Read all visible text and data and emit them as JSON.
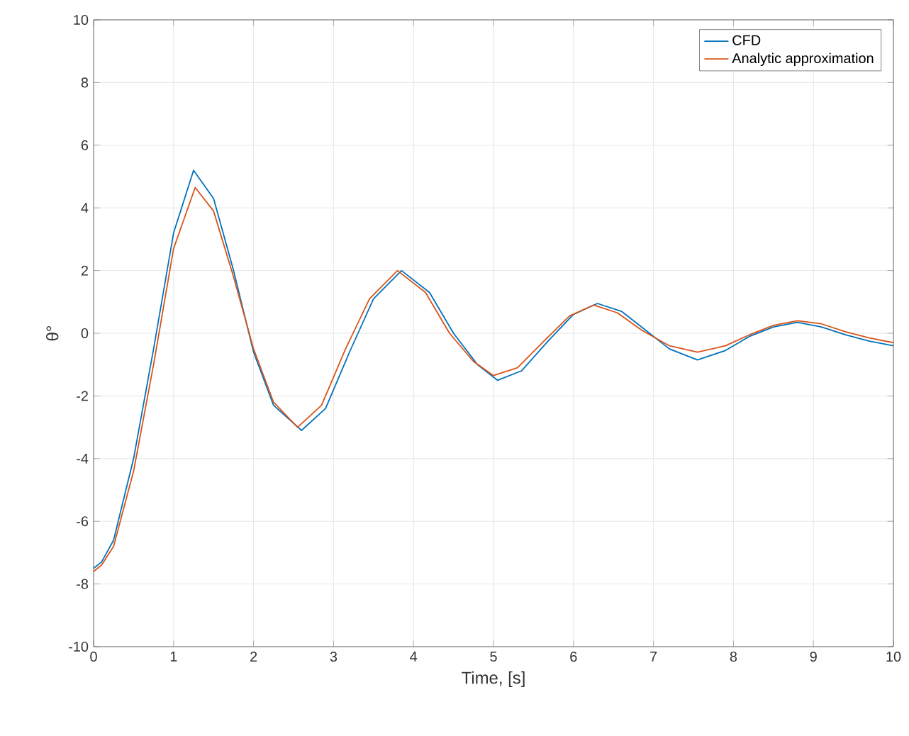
{
  "chart_data": {
    "type": "line",
    "xlabel": "Time, [s]",
    "ylabel": "θ°",
    "xlim": [
      0,
      10
    ],
    "ylim": [
      -10,
      10
    ],
    "xticks": [
      0,
      1,
      2,
      3,
      4,
      5,
      6,
      7,
      8,
      9,
      10
    ],
    "yticks": [
      -10,
      -8,
      -6,
      -4,
      -2,
      0,
      2,
      4,
      6,
      8,
      10
    ],
    "grid": true,
    "legend": "top right",
    "series": [
      {
        "name": "CFD",
        "color": "#0072bd",
        "x": [
          0,
          0.1,
          0.25,
          0.5,
          0.75,
          1.0,
          1.25,
          1.5,
          1.75,
          2.0,
          2.25,
          2.6,
          2.9,
          3.2,
          3.5,
          3.85,
          4.2,
          4.5,
          4.8,
          5.05,
          5.35,
          5.7,
          6.0,
          6.3,
          6.6,
          6.9,
          7.2,
          7.55,
          7.9,
          8.2,
          8.5,
          8.8,
          9.1,
          9.4,
          9.7,
          10
        ],
        "values": [
          -7.5,
          -7.3,
          -6.6,
          -4.0,
          -0.5,
          3.2,
          5.2,
          4.3,
          2.0,
          -0.6,
          -2.3,
          -3.1,
          -2.4,
          -0.6,
          1.1,
          2.0,
          1.3,
          0.0,
          -1.0,
          -1.5,
          -1.2,
          -0.2,
          0.6,
          0.95,
          0.7,
          0.1,
          -0.5,
          -0.85,
          -0.55,
          -0.1,
          0.2,
          0.35,
          0.2,
          -0.05,
          -0.25,
          -0.4
        ]
      },
      {
        "name": "Analytic approximation",
        "color": "#d95319",
        "x": [
          0,
          0.1,
          0.25,
          0.5,
          0.75,
          1.0,
          1.27,
          1.5,
          1.75,
          2.0,
          2.25,
          2.55,
          2.85,
          3.15,
          3.45,
          3.8,
          4.15,
          4.45,
          4.75,
          5.0,
          5.3,
          5.65,
          5.95,
          6.25,
          6.55,
          6.85,
          7.2,
          7.55,
          7.9,
          8.2,
          8.5,
          8.8,
          9.1,
          9.4,
          9.7,
          10
        ],
        "values": [
          -7.6,
          -7.4,
          -6.8,
          -4.4,
          -1.0,
          2.7,
          4.65,
          3.9,
          1.8,
          -0.5,
          -2.2,
          -3.0,
          -2.3,
          -0.5,
          1.1,
          2.0,
          1.3,
          0.0,
          -0.9,
          -1.35,
          -1.1,
          -0.2,
          0.55,
          0.9,
          0.65,
          0.1,
          -0.4,
          -0.6,
          -0.4,
          -0.05,
          0.25,
          0.4,
          0.3,
          0.05,
          -0.15,
          -0.3
        ]
      }
    ]
  }
}
